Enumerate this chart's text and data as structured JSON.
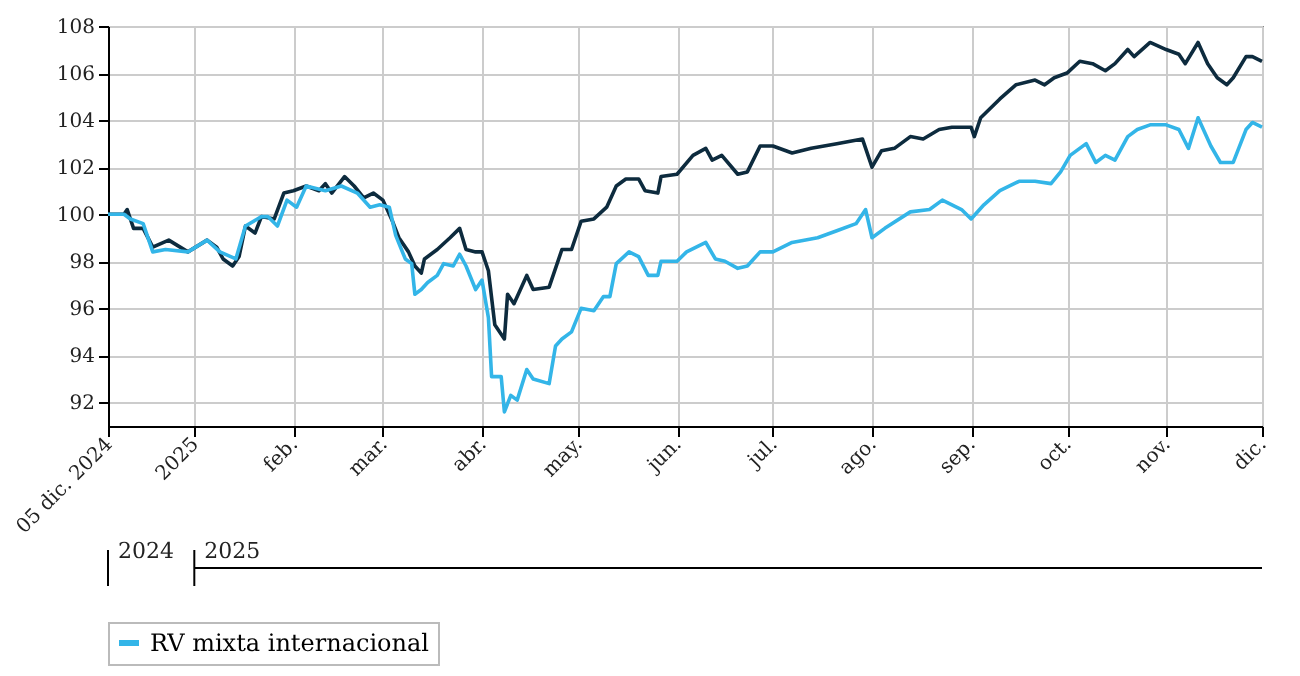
{
  "chart_data": {
    "type": "line",
    "xlim": [
      "2024-12-05",
      "2025-12-01"
    ],
    "xticks": [
      {
        "value": "2024-12-05",
        "label": "05 dic. 2024"
      },
      {
        "value": "2025-01-01",
        "label": "2025"
      },
      {
        "value": "2025-02-01",
        "label": "feb."
      },
      {
        "value": "2025-03-01",
        "label": "mar."
      },
      {
        "value": "2025-04-01",
        "label": "abr."
      },
      {
        "value": "2025-05-01",
        "label": "may."
      },
      {
        "value": "2025-06-01",
        "label": "jun."
      },
      {
        "value": "2025-07-01",
        "label": "jul."
      },
      {
        "value": "2025-08-01",
        "label": "ago."
      },
      {
        "value": "2025-09-01",
        "label": "sep."
      },
      {
        "value": "2025-10-01",
        "label": "oct."
      },
      {
        "value": "2025-11-01",
        "label": "nov."
      },
      {
        "value": "2025-12-01",
        "label": "dic."
      }
    ],
    "ylim": [
      91,
      108
    ],
    "yticks": [
      92,
      94,
      96,
      98,
      100,
      102,
      104,
      106,
      108
    ],
    "grid": true,
    "legend": "bottom",
    "line_style": "solid",
    "marker": "none",
    "annotations": [
      "2024",
      "2025"
    ],
    "series": [
      {
        "color": "#0d2b3e",
        "x": [
          "2024-12-05",
          "2024-12-10",
          "2024-12-11",
          "2024-12-13",
          "2024-12-16",
          "2024-12-19",
          "2024-12-24",
          "2024-12-30",
          "2025-01-05",
          "2025-01-08",
          "2025-01-10",
          "2025-01-13",
          "2025-01-15",
          "2025-01-17",
          "2025-01-20",
          "2025-01-22",
          "2025-01-26",
          "2025-01-29",
          "2025-02-01",
          "2025-02-05",
          "2025-02-09",
          "2025-02-11",
          "2025-02-13",
          "2025-02-17",
          "2025-02-20",
          "2025-02-23",
          "2025-02-26",
          "2025-03-01",
          "2025-03-04",
          "2025-03-06",
          "2025-03-09",
          "2025-03-11",
          "2025-03-13",
          "2025-03-14",
          "2025-03-18",
          "2025-03-22",
          "2025-03-25",
          "2025-03-27",
          "2025-03-30",
          "2025-04-01",
          "2025-04-03",
          "2025-04-05",
          "2025-04-08",
          "2025-04-09",
          "2025-04-11",
          "2025-04-15",
          "2025-04-17",
          "2025-04-22",
          "2025-04-26",
          "2025-04-29",
          "2025-05-02",
          "2025-05-06",
          "2025-05-10",
          "2025-05-13",
          "2025-05-16",
          "2025-05-20",
          "2025-05-22",
          "2025-05-26",
          "2025-05-27",
          "2025-06-01",
          "2025-06-06",
          "2025-06-10",
          "2025-06-12",
          "2025-06-15",
          "2025-06-20",
          "2025-06-23",
          "2025-06-27",
          "2025-07-01",
          "2025-07-07",
          "2025-07-13",
          "2025-07-21",
          "2025-07-29",
          "2025-08-01",
          "2025-08-04",
          "2025-08-08",
          "2025-08-13",
          "2025-08-17",
          "2025-08-22",
          "2025-08-26",
          "2025-09-01",
          "2025-09-02",
          "2025-09-04",
          "2025-09-10",
          "2025-09-15",
          "2025-09-21",
          "2025-09-24",
          "2025-09-27",
          "2025-10-01",
          "2025-10-05",
          "2025-10-09",
          "2025-10-13",
          "2025-10-16",
          "2025-10-20",
          "2025-10-22",
          "2025-10-27",
          "2025-11-01",
          "2025-11-05",
          "2025-11-07",
          "2025-11-11",
          "2025-11-14",
          "2025-11-17",
          "2025-11-20",
          "2025-11-22",
          "2025-11-26",
          "2025-11-28",
          "2025-12-01"
        ],
        "values": [
          100,
          100,
          100.2,
          99.4,
          99.4,
          98.6,
          98.9,
          98.4,
          98.9,
          98.6,
          98.1,
          97.8,
          98.2,
          99.5,
          99.2,
          99.9,
          99.8,
          100.9,
          101.0,
          101.2,
          101.0,
          101.3,
          100.9,
          101.6,
          101.2,
          100.7,
          100.9,
          100.6,
          99.7,
          99.0,
          98.4,
          97.8,
          97.5,
          98.1,
          98.5,
          99.0,
          99.4,
          98.5,
          98.4,
          98.4,
          97.6,
          95.3,
          94.7,
          96.6,
          96.2,
          97.4,
          96.8,
          96.9,
          98.5,
          98.5,
          99.7,
          99.8,
          100.3,
          101.2,
          101.5,
          101.5,
          101.0,
          100.9,
          101.6,
          101.7,
          102.5,
          102.8,
          102.3,
          102.5,
          101.7,
          101.8,
          102.9,
          102.9,
          102.6,
          102.8,
          103.0,
          103.2,
          102.0,
          102.7,
          102.8,
          103.3,
          103.2,
          103.6,
          103.7,
          103.7,
          103.3,
          104.1,
          104.9,
          105.5,
          105.7,
          105.5,
          105.8,
          106.0,
          106.5,
          106.4,
          106.1,
          106.4,
          107.0,
          106.7,
          107.3,
          107.0,
          106.8,
          106.4,
          107.3,
          106.4,
          105.8,
          105.5,
          105.8,
          106.7,
          106.7,
          106.5
        ]
      },
      {
        "name": "RV mixta internacional",
        "color": "#33b5e8",
        "x": [
          "2024-12-05",
          "2024-12-10",
          "2024-12-12",
          "2024-12-16",
          "2024-12-19",
          "2024-12-23",
          "2024-12-30",
          "2025-01-05",
          "2025-01-09",
          "2025-01-14",
          "2025-01-17",
          "2025-01-22",
          "2025-01-24",
          "2025-01-27",
          "2025-01-30",
          "2025-02-02",
          "2025-02-05",
          "2025-02-11",
          "2025-02-16",
          "2025-02-21",
          "2025-02-25",
          "2025-02-28",
          "2025-03-03",
          "2025-03-05",
          "2025-03-08",
          "2025-03-10",
          "2025-03-11",
          "2025-03-13",
          "2025-03-15",
          "2025-03-18",
          "2025-03-20",
          "2025-03-23",
          "2025-03-25",
          "2025-03-27",
          "2025-03-30",
          "2025-04-01",
          "2025-04-03",
          "2025-04-04",
          "2025-04-07",
          "2025-04-08",
          "2025-04-10",
          "2025-04-12",
          "2025-04-15",
          "2025-04-17",
          "2025-04-22",
          "2025-04-24",
          "2025-04-26",
          "2025-04-29",
          "2025-05-02",
          "2025-05-06",
          "2025-05-09",
          "2025-05-11",
          "2025-05-13",
          "2025-05-17",
          "2025-05-20",
          "2025-05-23",
          "2025-05-26",
          "2025-05-27",
          "2025-06-01",
          "2025-06-04",
          "2025-06-10",
          "2025-06-13",
          "2025-06-16",
          "2025-06-20",
          "2025-06-23",
          "2025-06-27",
          "2025-07-01",
          "2025-07-07",
          "2025-07-15",
          "2025-07-21",
          "2025-07-27",
          "2025-07-30",
          "2025-08-01",
          "2025-08-05",
          "2025-08-13",
          "2025-08-19",
          "2025-08-23",
          "2025-08-29",
          "2025-09-01",
          "2025-09-05",
          "2025-09-10",
          "2025-09-16",
          "2025-09-21",
          "2025-09-26",
          "2025-09-29",
          "2025-10-02",
          "2025-10-07",
          "2025-10-10",
          "2025-10-13",
          "2025-10-16",
          "2025-10-20",
          "2025-10-23",
          "2025-10-27",
          "2025-11-01",
          "2025-11-05",
          "2025-11-08",
          "2025-11-11",
          "2025-11-15",
          "2025-11-18",
          "2025-11-22",
          "2025-11-26",
          "2025-11-28",
          "2025-12-01"
        ],
        "values": [
          100,
          100,
          99.8,
          99.6,
          98.4,
          98.5,
          98.4,
          98.9,
          98.4,
          98.1,
          99.5,
          99.9,
          99.9,
          99.5,
          100.6,
          100.3,
          101.2,
          101.0,
          101.2,
          100.9,
          100.3,
          100.4,
          100.3,
          99.1,
          98.1,
          97.9,
          96.6,
          96.8,
          97.1,
          97.4,
          97.9,
          97.8,
          98.3,
          97.8,
          96.8,
          97.2,
          95.6,
          93.1,
          93.1,
          91.6,
          92.3,
          92.1,
          93.4,
          93.0,
          92.8,
          94.4,
          94.7,
          95.0,
          96.0,
          95.9,
          96.5,
          96.5,
          97.9,
          98.4,
          98.2,
          97.4,
          97.4,
          98.0,
          98.0,
          98.4,
          98.8,
          98.1,
          98.0,
          97.7,
          97.8,
          98.4,
          98.4,
          98.8,
          99.0,
          99.3,
          99.6,
          100.2,
          99.0,
          99.4,
          100.1,
          100.2,
          100.6,
          100.2,
          99.8,
          100.4,
          101.0,
          101.4,
          101.4,
          101.3,
          101.8,
          102.5,
          103.0,
          102.2,
          102.5,
          102.3,
          103.3,
          103.6,
          103.8,
          103.8,
          103.6,
          102.8,
          104.1,
          102.9,
          102.2,
          102.2,
          103.6,
          103.9,
          103.7
        ]
      }
    ]
  }
}
